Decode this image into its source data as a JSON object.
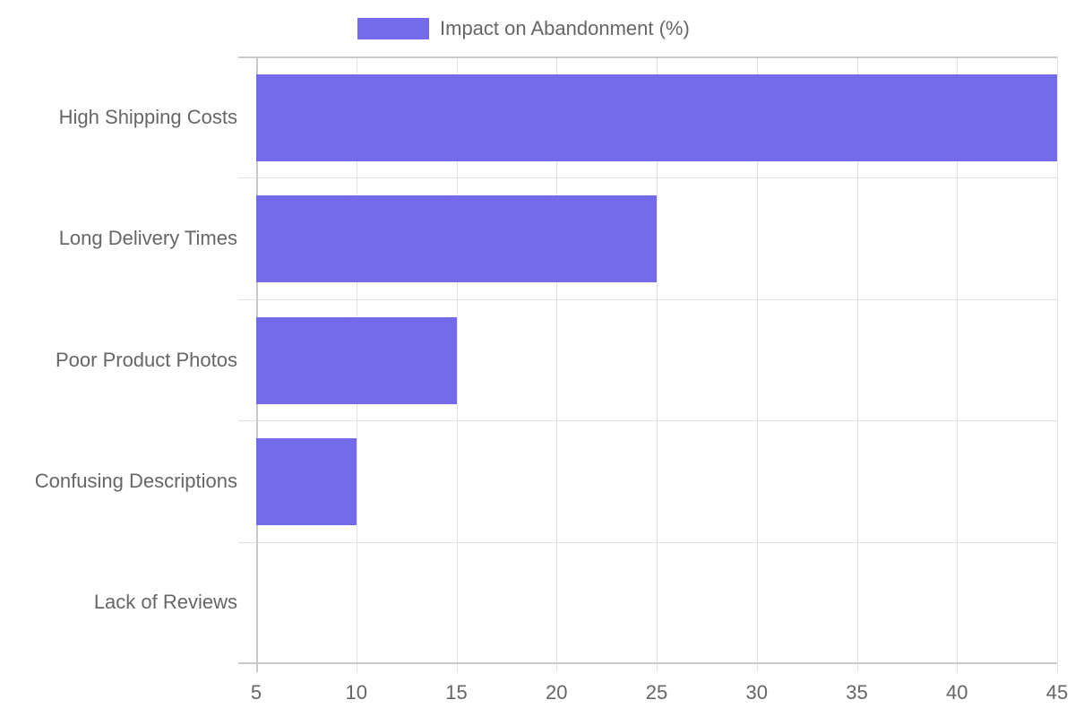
{
  "chart_data": {
    "type": "bar",
    "orientation": "horizontal",
    "title": "",
    "xlabel": "",
    "ylabel": "",
    "categories": [
      "High Shipping Costs",
      "Long Delivery Times",
      "Poor Product Photos",
      "Confusing Descriptions",
      "Lack of Reviews"
    ],
    "series": [
      {
        "name": "Impact on Abandonment (%)",
        "values": [
          45,
          25,
          15,
          10,
          5
        ],
        "color": "#6c63e8"
      }
    ],
    "xlim": [
      5,
      45
    ],
    "x_ticks": [
      "5",
      "10",
      "15",
      "20",
      "25",
      "30",
      "35",
      "40",
      "45"
    ],
    "grid": true,
    "legend_position": "top"
  },
  "legend": {
    "label": "Impact on Abandonment (%)",
    "color": "#6c63e8"
  }
}
